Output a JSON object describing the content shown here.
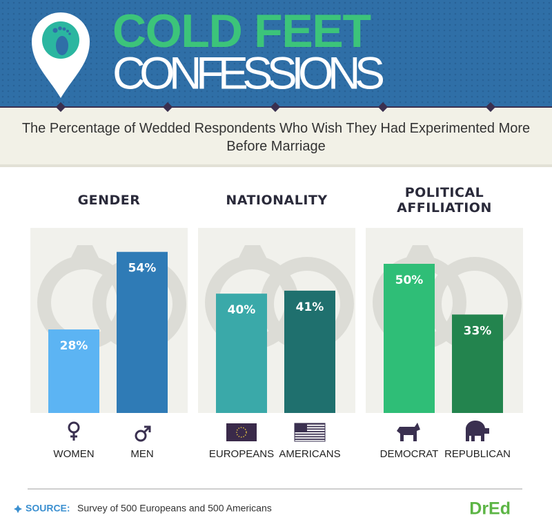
{
  "header": {
    "title_line1": "COLD FEET",
    "title_line2": "CONFESSIONS"
  },
  "subtitle": "The Percentage of Wedded Respondents Who Wish They Had Experimented More Before Marriage",
  "chart_data": [
    {
      "type": "bar",
      "title": "GENDER",
      "categories": [
        "WOMEN",
        "MEN"
      ],
      "values": [
        28,
        54
      ],
      "value_labels": [
        "28%",
        "54%"
      ],
      "colors": [
        "#5cb4f3",
        "#2f7bb6"
      ]
    },
    {
      "type": "bar",
      "title": "NATIONALITY",
      "categories": [
        "EUROPEANS",
        "AMERICANS"
      ],
      "values": [
        40,
        41
      ],
      "value_labels": [
        "40%",
        "41%"
      ],
      "colors": [
        "#3aa9a9",
        "#1f706e"
      ]
    },
    {
      "type": "bar",
      "title": "POLITICAL AFFILIATION",
      "categories": [
        "DEMOCRAT",
        "REPUBLICAN"
      ],
      "values": [
        50,
        33
      ],
      "value_labels": [
        "50%",
        "33%"
      ],
      "colors": [
        "#2fbe77",
        "#23844e"
      ]
    }
  ],
  "source": {
    "label": "SOURCE:",
    "text": "Survey of 500 Europeans and 500 Americans"
  },
  "logo": "DrEd"
}
